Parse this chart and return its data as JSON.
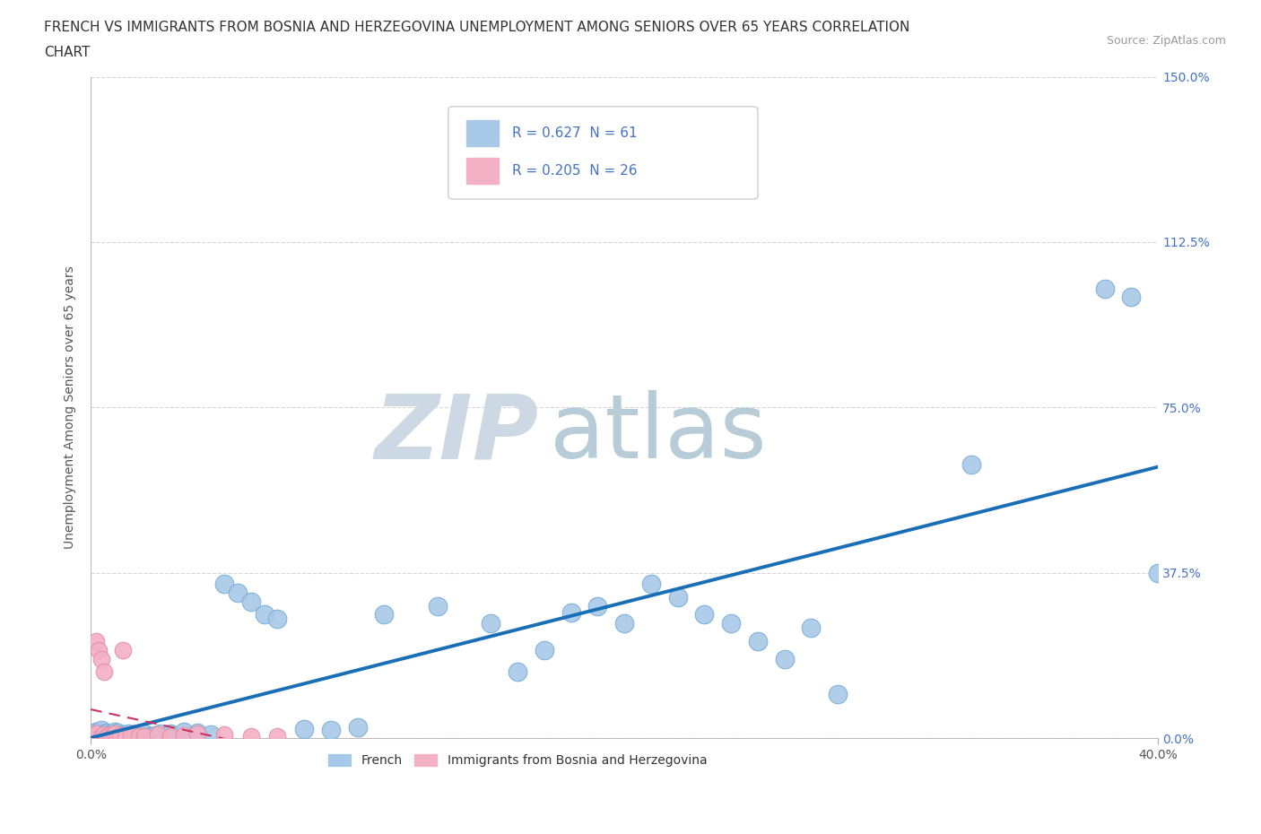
{
  "title_line1": "FRENCH VS IMMIGRANTS FROM BOSNIA AND HERZEGOVINA UNEMPLOYMENT AMONG SENIORS OVER 65 YEARS CORRELATION",
  "title_line2": "CHART",
  "source": "Source: ZipAtlas.com",
  "ylabel": "Unemployment Among Seniors over 65 years",
  "xlim": [
    0.0,
    0.4
  ],
  "ylim": [
    0.0,
    1.5
  ],
  "xtick_positions": [
    0.0,
    0.4
  ],
  "xtick_labels": [
    "0.0%",
    "40.0%"
  ],
  "ytick_positions": [
    0.0,
    0.375,
    0.75,
    1.125,
    1.5
  ],
  "ytick_labels": [
    "0.0%",
    "37.5%",
    "75.0%",
    "112.5%",
    "150.0%"
  ],
  "french_R": 0.627,
  "french_N": 61,
  "bosnia_R": 0.205,
  "bosnia_N": 26,
  "french_color": "#a8c8e8",
  "french_edge_color": "#7aaed4",
  "french_line_color": "#1a6eb5",
  "bosnia_color": "#f4b0c4",
  "bosnia_edge_color": "#e090a8",
  "bosnia_line_color": "#cc3060",
  "watermark_zip": "ZIP",
  "watermark_atlas": "atlas",
  "watermark_color_zip": "#c8d8e8",
  "watermark_color_atlas": "#b8ccd8",
  "legend_label_french": "French",
  "legend_label_bosnia": "Immigrants from Bosnia and Herzegovina",
  "title_fontsize": 11,
  "axis_label_fontsize": 10,
  "tick_fontsize": 10,
  "legend_fontsize": 10
}
